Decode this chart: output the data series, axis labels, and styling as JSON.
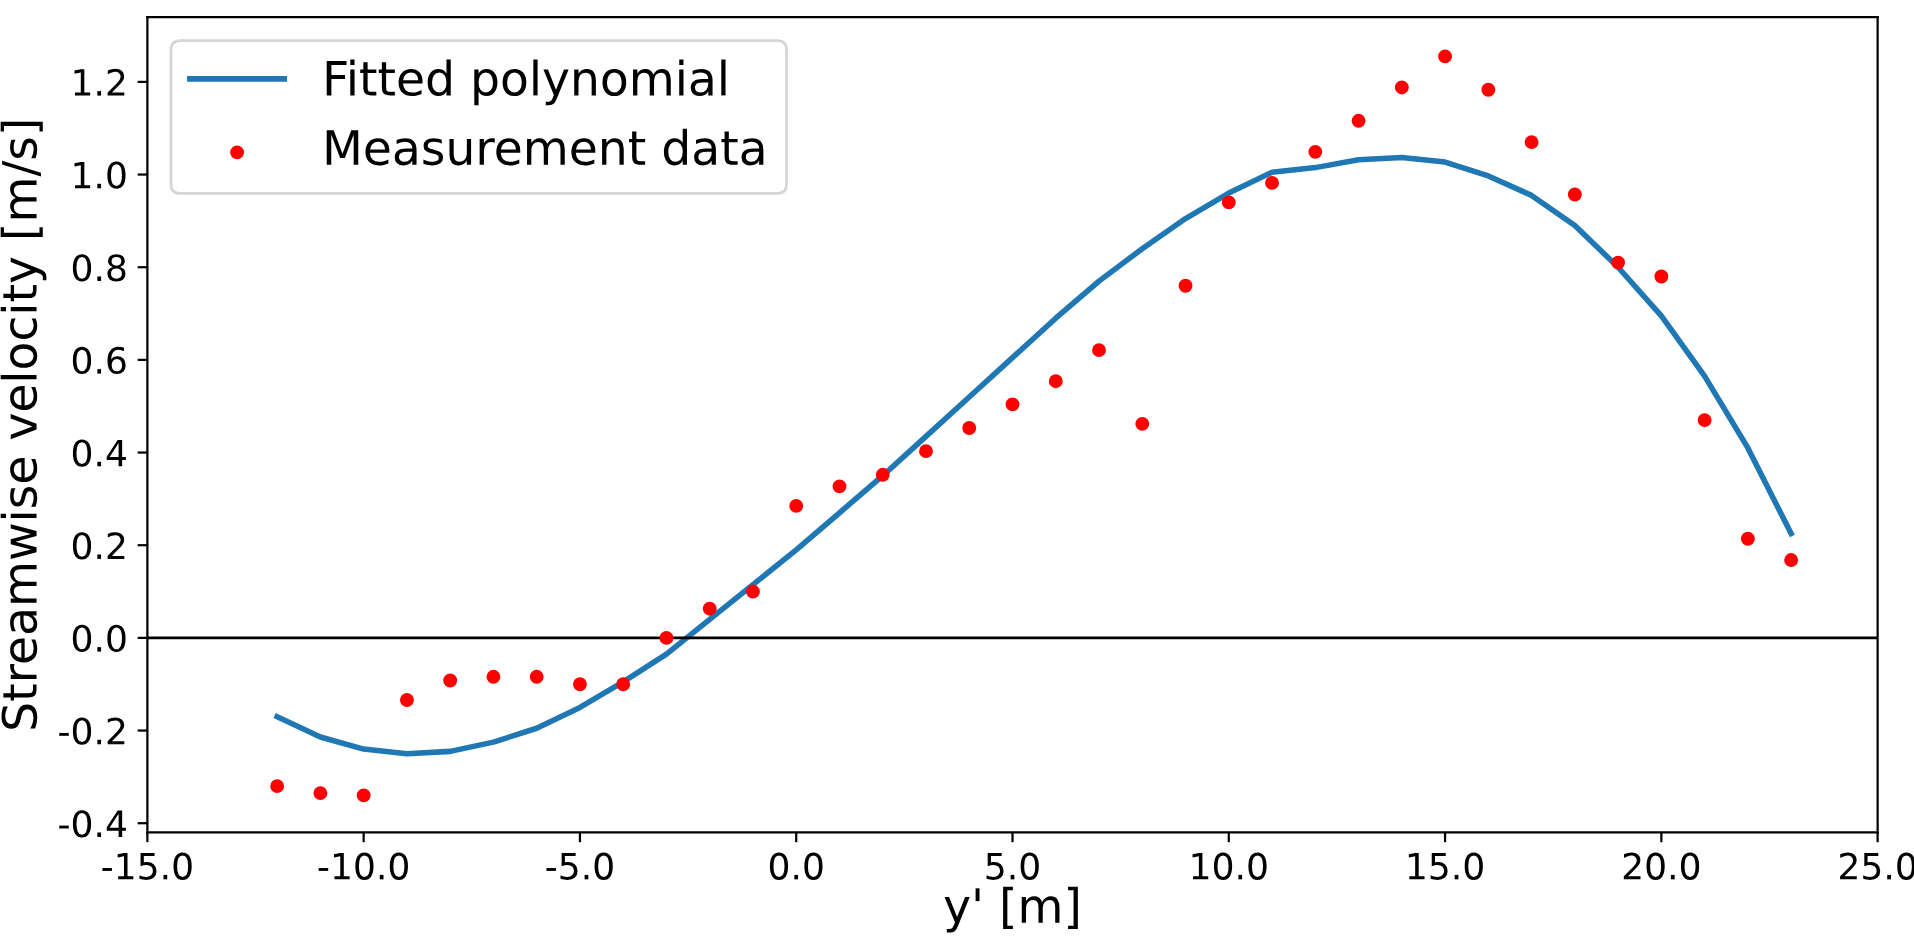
{
  "chart_data": {
    "type": "line",
    "xlabel": "y' [m]",
    "ylabel": "Streamwise velocity [m/s]",
    "xlim": [
      -15,
      25
    ],
    "ylim": [
      -0.42,
      1.34
    ],
    "xticks": [
      {
        "value": -15,
        "label": "-15.0"
      },
      {
        "value": -10,
        "label": "-10.0"
      },
      {
        "value": -5,
        "label": "-5.0"
      },
      {
        "value": 0,
        "label": "0.0"
      },
      {
        "value": 5,
        "label": "5.0"
      },
      {
        "value": 10,
        "label": "10.0"
      },
      {
        "value": 15,
        "label": "15.0"
      },
      {
        "value": 20,
        "label": "20.0"
      },
      {
        "value": 25,
        "label": "25.0"
      }
    ],
    "yticks": [
      {
        "value": -0.4,
        "label": "-0.4"
      },
      {
        "value": -0.2,
        "label": "-0.2"
      },
      {
        "value": 0,
        "label": "0.0"
      },
      {
        "value": 0.2,
        "label": "0.2"
      },
      {
        "value": 0.4,
        "label": "0.4"
      },
      {
        "value": 0.6,
        "label": "0.6"
      },
      {
        "value": 0.8,
        "label": "0.8"
      },
      {
        "value": 1.0,
        "label": "1.0"
      },
      {
        "value": 1.2,
        "label": "1.2"
      }
    ],
    "legend": "top left",
    "grid": false,
    "ref_lines": [
      {
        "axis": "y",
        "value": 0,
        "color": "#000000"
      }
    ],
    "series": [
      {
        "name": "Fitted polynomial",
        "color": "#1f77b4",
        "marker": "none",
        "x": [
          -12,
          -11,
          -10,
          -9,
          -8,
          -7,
          -6,
          -5,
          -4,
          -3,
          -2,
          -1,
          0,
          1,
          2,
          3,
          4,
          5,
          6,
          7,
          8,
          9,
          10,
          11,
          12,
          13,
          14,
          15,
          16,
          17,
          18,
          19,
          20,
          21,
          22,
          23
        ],
        "values": [
          -0.17,
          -0.214,
          -0.24,
          -0.25,
          -0.245,
          -0.225,
          -0.195,
          -0.15,
          -0.095,
          -0.035,
          0.04,
          0.115,
          0.19,
          0.27,
          0.35,
          0.435,
          0.52,
          0.605,
          0.69,
          0.77,
          0.84,
          0.905,
          0.96,
          1.005,
          1.015,
          1.032,
          1.037,
          1.027,
          0.997,
          0.955,
          0.89,
          0.8,
          0.695,
          0.565,
          0.41,
          0.225
        ]
      },
      {
        "name": "Measurement data",
        "type": "scatter",
        "color": "#ff0000",
        "marker": "circle",
        "x": [
          -12,
          -11,
          -10,
          -9,
          -8,
          -7,
          -6,
          -5,
          -4,
          -3,
          -2,
          -1,
          0,
          1,
          2,
          3,
          4,
          5,
          6,
          7,
          8,
          9,
          10,
          11,
          12,
          13,
          14,
          15,
          16,
          17,
          18,
          19,
          20,
          21,
          22,
          23
        ],
        "values": [
          -0.32,
          -0.335,
          -0.34,
          -0.134,
          -0.092,
          -0.084,
          -0.084,
          -0.1,
          -0.1,
          0.0,
          0.063,
          0.1,
          0.285,
          0.327,
          0.352,
          0.403,
          0.453,
          0.504,
          0.554,
          0.621,
          0.462,
          0.76,
          0.94,
          0.982,
          1.049,
          1.116,
          1.188,
          1.255,
          1.183,
          1.07,
          0.957,
          0.81,
          0.78,
          0.47,
          0.214,
          0.168
        ]
      }
    ]
  }
}
